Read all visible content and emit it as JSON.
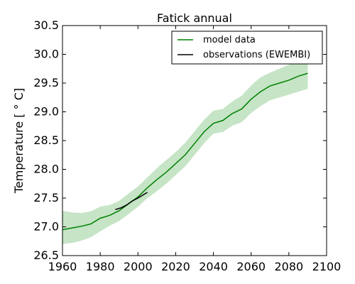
{
  "chart_data": {
    "type": "line",
    "title": "Fatick annual",
    "xlabel": "",
    "ylabel": "Temperature [ ° C]",
    "xlim": [
      1960,
      2100
    ],
    "ylim": [
      26.5,
      30.5
    ],
    "xticks": [
      "1960",
      "1980",
      "2000",
      "2020",
      "2040",
      "2060",
      "2080",
      "2100"
    ],
    "yticks": [
      "26.5",
      "27.0",
      "27.5",
      "28.0",
      "28.5",
      "29.0",
      "29.5",
      "30.0",
      "30.5"
    ],
    "grid": false,
    "legend_position": "top-right",
    "colors": {
      "model": "#008000",
      "band": "#b3dbb3",
      "observations": "#000000"
    },
    "series": [
      {
        "name": "model data",
        "x": [
          1960,
          1965,
          1970,
          1975,
          1980,
          1985,
          1990,
          1995,
          2000,
          2005,
          2010,
          2015,
          2020,
          2025,
          2030,
          2035,
          2040,
          2045,
          2050,
          2055,
          2060,
          2065,
          2070,
          2075,
          2080,
          2085,
          2090
        ],
        "y": [
          26.95,
          26.98,
          27.01,
          27.05,
          27.15,
          27.2,
          27.28,
          27.4,
          27.52,
          27.68,
          27.82,
          27.95,
          28.1,
          28.25,
          28.45,
          28.65,
          28.8,
          28.85,
          28.97,
          29.05,
          29.22,
          29.35,
          29.45,
          29.5,
          29.55,
          29.62,
          29.67
        ],
        "lower": [
          26.7,
          26.72,
          26.76,
          26.82,
          26.92,
          27.02,
          27.1,
          27.22,
          27.35,
          27.5,
          27.62,
          27.75,
          27.9,
          28.05,
          28.25,
          28.45,
          28.62,
          28.65,
          28.76,
          28.82,
          28.98,
          29.1,
          29.2,
          29.25,
          29.3,
          29.35,
          29.4
        ],
        "upper": [
          27.28,
          27.25,
          27.24,
          27.27,
          27.35,
          27.38,
          27.45,
          27.58,
          27.7,
          27.86,
          28.02,
          28.16,
          28.3,
          28.46,
          28.66,
          28.86,
          29.02,
          29.05,
          29.18,
          29.28,
          29.46,
          29.6,
          29.68,
          29.75,
          29.82,
          29.95,
          30.0
        ]
      },
      {
        "name": "observations (EWEMBI)",
        "x": [
          1988,
          1991,
          1994,
          1997,
          2000,
          2003,
          2005
        ],
        "y": [
          27.3,
          27.33,
          27.38,
          27.45,
          27.5,
          27.56,
          27.6
        ]
      }
    ]
  }
}
